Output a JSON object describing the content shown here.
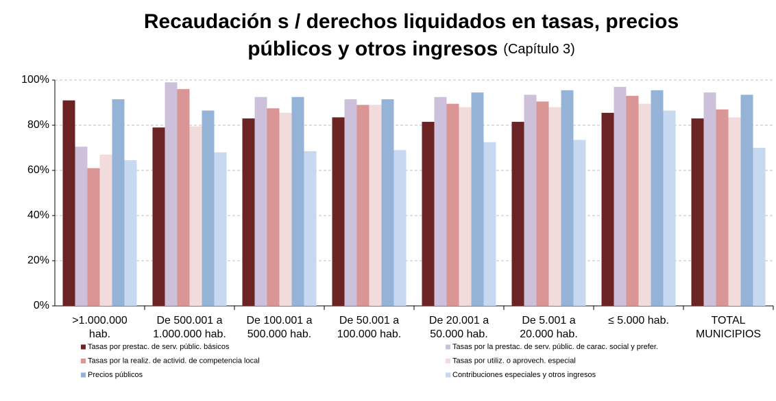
{
  "chart_data": {
    "type": "bar",
    "title": [
      "Recaudación s / derechos liquidados en tasas, precios",
      "públicos y otros ingresos"
    ],
    "title_note": "(Capítulo 3)",
    "categories": [
      [
        ">1.000.000",
        "hab."
      ],
      [
        "De 500.001 a",
        "1.000.000 hab."
      ],
      [
        "De 100.001 a",
        "500.000 hab."
      ],
      [
        "De 50.001 a",
        "100.000 hab."
      ],
      [
        "De 20.001 a",
        "50.000 hab."
      ],
      [
        "De 5.001 a",
        "20.000 hab."
      ],
      [
        "≤ 5.000 hab."
      ],
      [
        "TOTAL",
        "MUNICIPIOS"
      ]
    ],
    "series": [
      {
        "name": "Tasas por prestac. de serv. públic. básicos",
        "color": "#6b2323",
        "values": [
          91,
          79,
          83,
          83.5,
          81.5,
          81.5,
          85.5,
          83
        ]
      },
      {
        "name": "Tasas por la prestac. de serv. públic. de carac. social y prefer.",
        "color": "#ccc0da",
        "values": [
          70.5,
          99,
          92.5,
          91.5,
          92.5,
          93.5,
          97,
          94.5
        ]
      },
      {
        "name": "Tasas por la realiz. de activid. de competencia local",
        "color": "#d99694",
        "values": [
          61,
          96,
          87.5,
          89,
          89.5,
          90.5,
          93,
          87
        ]
      },
      {
        "name": "Tasas por utiliz. o aprovech. especial",
        "color": "#f2dcdb",
        "values": [
          67,
          79.5,
          85.5,
          89,
          88,
          88,
          89.5,
          83.5
        ]
      },
      {
        "name": "Precios públicos",
        "color": "#95b3d7",
        "values": [
          91.5,
          86.5,
          92.5,
          91.5,
          94.5,
          95.5,
          95.5,
          93.5
        ]
      },
      {
        "name": "Contribuciones especiales y otros ingresos",
        "color": "#c6d9f0",
        "values": [
          64.5,
          68,
          68.5,
          69,
          72.5,
          73.5,
          86.5,
          70
        ]
      }
    ],
    "ylim": [
      0,
      100
    ],
    "yticks": [
      {
        "value": 0,
        "label": "0%"
      },
      {
        "value": 20,
        "label": "20%"
      },
      {
        "value": 40,
        "label": "40%"
      },
      {
        "value": 60,
        "label": "60%"
      },
      {
        "value": 80,
        "label": "80%"
      },
      {
        "value": 100,
        "label": "100%"
      }
    ],
    "grid": true
  }
}
